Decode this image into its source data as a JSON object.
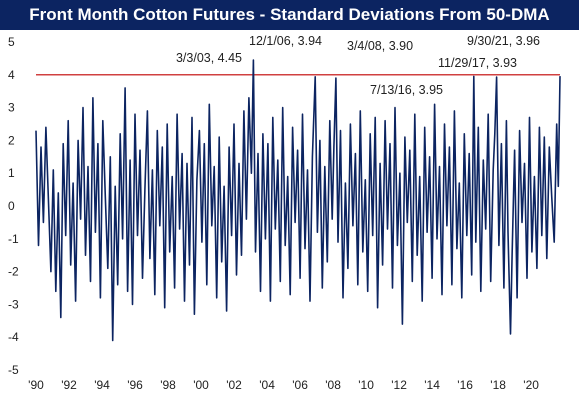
{
  "chart_data": {
    "type": "line",
    "title": "Front Month Cotton Futures - Standard Deviations From 50-DMA",
    "xlabel": "",
    "ylabel": "",
    "ylim": [
      -5,
      5
    ],
    "xlim": [
      1990,
      2021.75
    ],
    "grid": false,
    "legend": "none",
    "y_ticks": [
      -5,
      -4,
      -3,
      -2,
      -1,
      0,
      1,
      2,
      3,
      4,
      5
    ],
    "x_ticks": [
      {
        "value": 1990,
        "label": "'90"
      },
      {
        "value": 1992,
        "label": "'92"
      },
      {
        "value": 1994,
        "label": "'94"
      },
      {
        "value": 1996,
        "label": "'96"
      },
      {
        "value": 1998,
        "label": "'98"
      },
      {
        "value": 2000,
        "label": "'00"
      },
      {
        "value": 2002,
        "label": "'02"
      },
      {
        "value": 2004,
        "label": "'04"
      },
      {
        "value": 2006,
        "label": "'06"
      },
      {
        "value": 2008,
        "label": "'08"
      },
      {
        "value": 2010,
        "label": "'10"
      },
      {
        "value": 2012,
        "label": "'12"
      },
      {
        "value": 2014,
        "label": "'14"
      },
      {
        "value": 2016,
        "label": "'16"
      },
      {
        "value": 2018,
        "label": "'18"
      },
      {
        "value": 2020,
        "label": "'20"
      }
    ],
    "reference_line": {
      "y": 4,
      "color": "#c00000"
    },
    "series_color": "#0c2461",
    "annotations": [
      {
        "label": "3/3/03, 4.45",
        "x": 2003.17,
        "y": 4.45
      },
      {
        "label": "12/1/06, 3.94",
        "x": 2006.92,
        "y": 3.94
      },
      {
        "label": "3/4/08, 3.90",
        "x": 2008.17,
        "y": 3.9
      },
      {
        "label": "7/13/16, 3.95",
        "x": 2016.53,
        "y": 3.95
      },
      {
        "label": "11/29/17, 3.93",
        "x": 2017.91,
        "y": 3.93
      },
      {
        "label": "9/30/21, 3.96",
        "x": 2021.75,
        "y": 3.96
      }
    ],
    "series": [
      {
        "values": [
          [
            1990.0,
            2.3
          ],
          [
            1990.15,
            -1.2
          ],
          [
            1990.3,
            1.8
          ],
          [
            1990.45,
            -0.5
          ],
          [
            1990.6,
            2.4
          ],
          [
            1990.75,
            0.2
          ],
          [
            1990.9,
            -2.0
          ],
          [
            1991.05,
            1.1
          ],
          [
            1991.2,
            -2.6
          ],
          [
            1991.35,
            0.4
          ],
          [
            1991.5,
            -3.4
          ],
          [
            1991.65,
            1.9
          ],
          [
            1991.8,
            -0.9
          ],
          [
            1991.95,
            2.6
          ],
          [
            1992.1,
            -1.8
          ],
          [
            1992.25,
            0.7
          ],
          [
            1992.4,
            -2.9
          ],
          [
            1992.55,
            2.0
          ],
          [
            1992.7,
            -0.4
          ],
          [
            1992.85,
            3.0
          ],
          [
            1993.0,
            -1.5
          ],
          [
            1993.15,
            1.2
          ],
          [
            1993.3,
            -2.3
          ],
          [
            1993.45,
            3.3
          ],
          [
            1993.6,
            -0.8
          ],
          [
            1993.75,
            1.9
          ],
          [
            1993.9,
            -2.8
          ],
          [
            1994.05,
            2.6
          ],
          [
            1994.2,
            0.3
          ],
          [
            1994.35,
            -1.9
          ],
          [
            1994.5,
            1.5
          ],
          [
            1994.65,
            -4.1
          ],
          [
            1994.8,
            0.6
          ],
          [
            1994.95,
            -2.4
          ],
          [
            1995.1,
            2.2
          ],
          [
            1995.25,
            -1.0
          ],
          [
            1995.4,
            3.6
          ],
          [
            1995.55,
            -2.6
          ],
          [
            1995.7,
            1.4
          ],
          [
            1995.85,
            -3.0
          ],
          [
            1996.0,
            2.8
          ],
          [
            1996.15,
            -0.9
          ],
          [
            1996.3,
            1.7
          ],
          [
            1996.45,
            -2.2
          ],
          [
            1996.6,
            0.5
          ],
          [
            1996.75,
            2.9
          ],
          [
            1996.9,
            -1.6
          ],
          [
            1997.05,
            1.1
          ],
          [
            1997.2,
            -2.7
          ],
          [
            1997.35,
            2.3
          ],
          [
            1997.5,
            -0.6
          ],
          [
            1997.65,
            1.8
          ],
          [
            1997.8,
            -3.1
          ],
          [
            1997.95,
            2.5
          ],
          [
            1998.1,
            -1.4
          ],
          [
            1998.25,
            0.9
          ],
          [
            1998.4,
            -2.5
          ],
          [
            1998.55,
            2.8
          ],
          [
            1998.7,
            -0.7
          ],
          [
            1998.85,
            1.6
          ],
          [
            1999.0,
            -2.9
          ],
          [
            1999.15,
            1.3
          ],
          [
            1999.3,
            -1.8
          ],
          [
            1999.45,
            2.7
          ],
          [
            1999.6,
            -3.3
          ],
          [
            1999.75,
            0.8
          ],
          [
            1999.9,
            2.3
          ],
          [
            2000.05,
            -1.1
          ],
          [
            2000.2,
            1.9
          ],
          [
            2000.35,
            -2.4
          ],
          [
            2000.5,
            3.1
          ],
          [
            2000.65,
            -0.6
          ],
          [
            2000.8,
            1.2
          ],
          [
            2000.95,
            -2.8
          ],
          [
            2001.1,
            2.1
          ],
          [
            2001.25,
            -1.7
          ],
          [
            2001.4,
            0.6
          ],
          [
            2001.55,
            -3.2
          ],
          [
            2001.7,
            1.8
          ],
          [
            2001.85,
            -0.9
          ],
          [
            2002.0,
            2.5
          ],
          [
            2002.15,
            -2.1
          ],
          [
            2002.3,
            1.3
          ],
          [
            2002.45,
            -1.5
          ],
          [
            2002.6,
            2.9
          ],
          [
            2002.75,
            -0.4
          ],
          [
            2002.9,
            3.3
          ],
          [
            2003.05,
            1.0
          ],
          [
            2003.17,
            4.45
          ],
          [
            2003.3,
            -1.4
          ],
          [
            2003.45,
            1.6
          ],
          [
            2003.6,
            -2.6
          ],
          [
            2003.75,
            2.2
          ],
          [
            2003.9,
            -1.0
          ],
          [
            2004.05,
            1.9
          ],
          [
            2004.2,
            -2.9
          ],
          [
            2004.35,
            2.7
          ],
          [
            2004.5,
            -0.7
          ],
          [
            2004.65,
            1.4
          ],
          [
            2004.8,
            -2.3
          ],
          [
            2004.95,
            3.0
          ],
          [
            2005.1,
            -1.2
          ],
          [
            2005.25,
            0.9
          ],
          [
            2005.4,
            -2.7
          ],
          [
            2005.55,
            2.4
          ],
          [
            2005.7,
            -0.5
          ],
          [
            2005.85,
            1.7
          ],
          [
            2006.0,
            -2.2
          ],
          [
            2006.15,
            2.8
          ],
          [
            2006.3,
            -1.3
          ],
          [
            2006.45,
            1.1
          ],
          [
            2006.6,
            -2.9
          ],
          [
            2006.75,
            1.5
          ],
          [
            2006.92,
            3.94
          ],
          [
            2007.05,
            -0.8
          ],
          [
            2007.2,
            2.0
          ],
          [
            2007.35,
            -2.5
          ],
          [
            2007.5,
            1.2
          ],
          [
            2007.65,
            -1.7
          ],
          [
            2007.8,
            2.6
          ],
          [
            2007.95,
            -0.4
          ],
          [
            2008.05,
            1.8
          ],
          [
            2008.17,
            3.9
          ],
          [
            2008.3,
            -1.1
          ],
          [
            2008.45,
            2.3
          ],
          [
            2008.6,
            -2.8
          ],
          [
            2008.75,
            0.7
          ],
          [
            2008.9,
            -1.9
          ],
          [
            2009.05,
            2.5
          ],
          [
            2009.2,
            -0.6
          ],
          [
            2009.35,
            1.6
          ],
          [
            2009.5,
            -2.4
          ],
          [
            2009.65,
            2.9
          ],
          [
            2009.8,
            -1.4
          ],
          [
            2009.95,
            0.8
          ],
          [
            2010.1,
            -2.6
          ],
          [
            2010.25,
            2.2
          ],
          [
            2010.4,
            -0.9
          ],
          [
            2010.55,
            2.7
          ],
          [
            2010.7,
            -3.1
          ],
          [
            2010.85,
            1.3
          ],
          [
            2011.0,
            -1.8
          ],
          [
            2011.15,
            2.6
          ],
          [
            2011.3,
            -0.7
          ],
          [
            2011.45,
            1.9
          ],
          [
            2011.6,
            -2.5
          ],
          [
            2011.75,
            3.0
          ],
          [
            2011.9,
            -1.2
          ],
          [
            2012.05,
            1.0
          ],
          [
            2012.2,
            -3.6
          ],
          [
            2012.35,
            2.1
          ],
          [
            2012.5,
            -0.5
          ],
          [
            2012.65,
            1.7
          ],
          [
            2012.8,
            -2.3
          ],
          [
            2012.95,
            2.8
          ],
          [
            2013.1,
            -1.5
          ],
          [
            2013.25,
            0.9
          ],
          [
            2013.4,
            -2.9
          ],
          [
            2013.55,
            2.4
          ],
          [
            2013.7,
            -0.8
          ],
          [
            2013.85,
            1.5
          ],
          [
            2014.0,
            -2.2
          ],
          [
            2014.15,
            3.1
          ],
          [
            2014.3,
            -1.0
          ],
          [
            2014.45,
            1.2
          ],
          [
            2014.6,
            -2.7
          ],
          [
            2014.75,
            2.5
          ],
          [
            2014.9,
            -0.6
          ],
          [
            2015.05,
            1.8
          ],
          [
            2015.2,
            -2.4
          ],
          [
            2015.35,
            2.9
          ],
          [
            2015.5,
            -1.3
          ],
          [
            2015.65,
            0.7
          ],
          [
            2015.8,
            -2.8
          ],
          [
            2015.95,
            2.2
          ],
          [
            2016.1,
            -0.9
          ],
          [
            2016.25,
            1.6
          ],
          [
            2016.4,
            -2.1
          ],
          [
            2016.53,
            3.95
          ],
          [
            2016.65,
            -1.1
          ],
          [
            2016.8,
            2.4
          ],
          [
            2016.95,
            -2.6
          ],
          [
            2017.1,
            1.4
          ],
          [
            2017.25,
            -0.7
          ],
          [
            2017.4,
            2.8
          ],
          [
            2017.55,
            -2.3
          ],
          [
            2017.7,
            1.1
          ],
          [
            2017.8,
            2.2
          ],
          [
            2017.91,
            3.93
          ],
          [
            2018.05,
            -1.2
          ],
          [
            2018.2,
            1.9
          ],
          [
            2018.35,
            -2.5
          ],
          [
            2018.5,
            2.6
          ],
          [
            2018.6,
            -0.8
          ],
          [
            2018.75,
            -3.9
          ],
          [
            2018.85,
            -1.5
          ],
          [
            2019.0,
            1.7
          ],
          [
            2019.15,
            -2.8
          ],
          [
            2019.3,
            2.3
          ],
          [
            2019.45,
            -0.5
          ],
          [
            2019.6,
            1.3
          ],
          [
            2019.75,
            -2.2
          ],
          [
            2019.9,
            2.7
          ],
          [
            2020.05,
            -1.4
          ],
          [
            2020.2,
            0.9
          ],
          [
            2020.35,
            -1.9
          ],
          [
            2020.5,
            2.4
          ],
          [
            2020.65,
            -0.9
          ],
          [
            2020.8,
            2.1
          ],
          [
            2020.95,
            -1.6
          ],
          [
            2021.1,
            1.8
          ],
          [
            2021.25,
            0.3
          ],
          [
            2021.4,
            -1.1
          ],
          [
            2021.55,
            2.5
          ],
          [
            2021.65,
            0.6
          ],
          [
            2021.75,
            3.96
          ]
        ]
      }
    ]
  }
}
